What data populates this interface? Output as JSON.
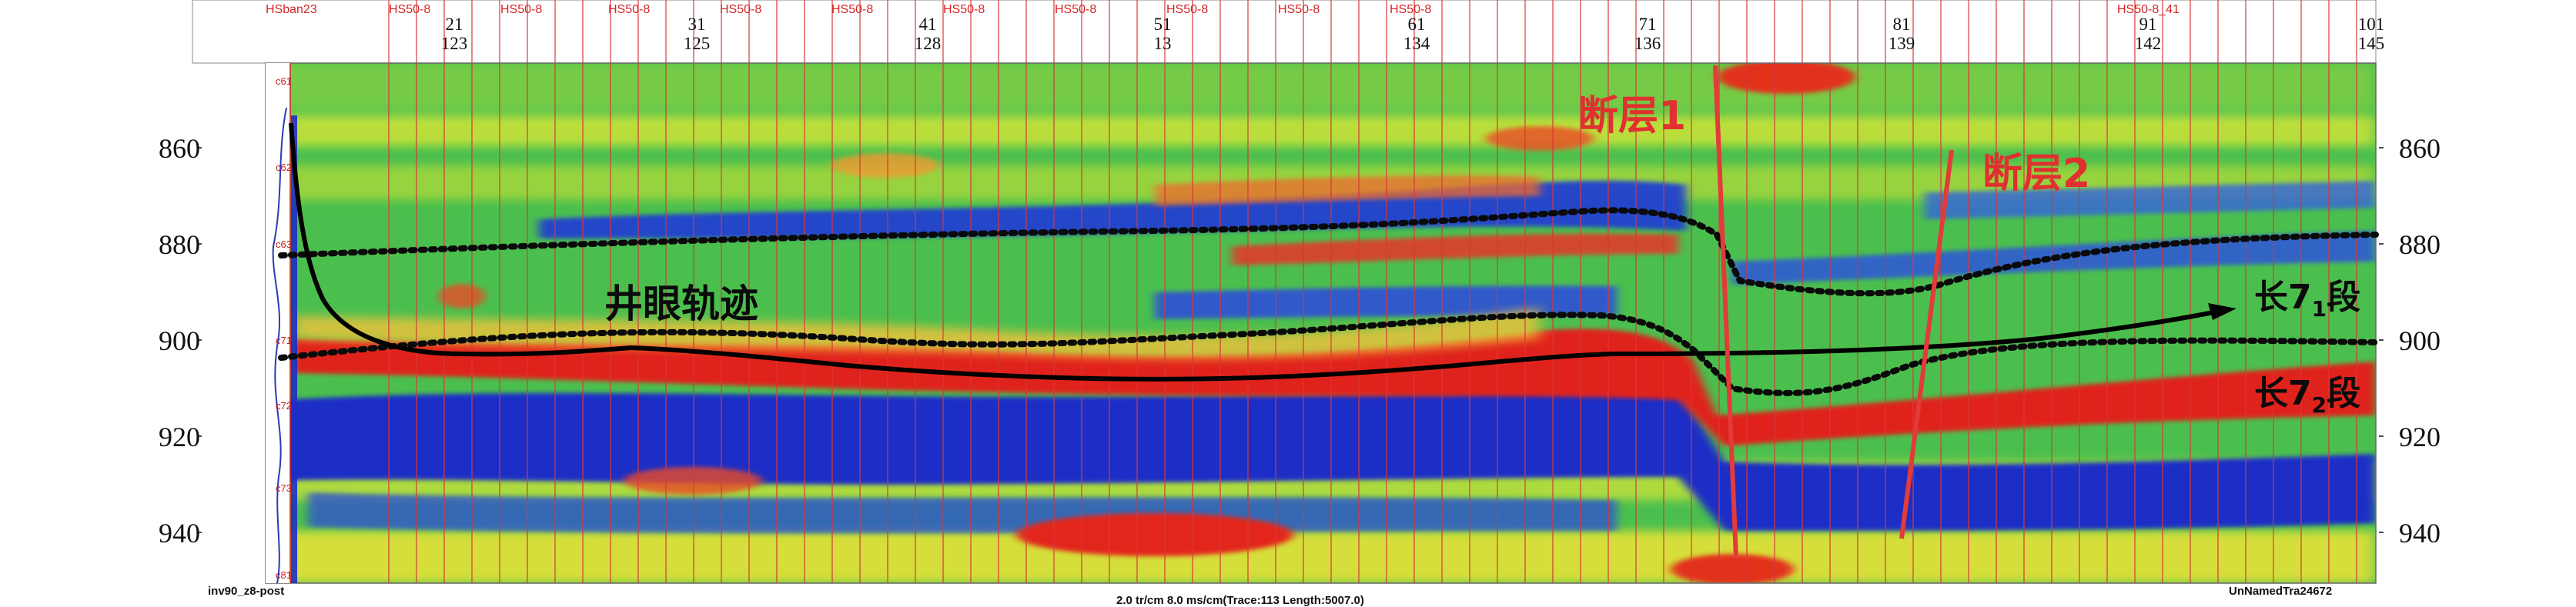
{
  "header": {
    "well_tags": [
      "HSban23",
      "HS50-8",
      "HS50-8",
      "HS50-8",
      "HS50-8",
      "HS50-8",
      "HS50-8",
      "HS50-8",
      "HS50-8",
      "HS50-8",
      "HS50-8",
      "HS50-8_41"
    ],
    "trace_numbers": [
      {
        "top": "21",
        "bottom": "123"
      },
      {
        "top": "31",
        "bottom": "125"
      },
      {
        "top": "41",
        "bottom": "128"
      },
      {
        "top": "51",
        "bottom": "13"
      },
      {
        "top": "61",
        "bottom": "134"
      },
      {
        "top": "71",
        "bottom": "136"
      },
      {
        "top": "81",
        "bottom": "139"
      },
      {
        "top": "91",
        "bottom": "142"
      },
      {
        "top": "101",
        "bottom": "145"
      }
    ]
  },
  "depth_axis": {
    "labels": [
      "860",
      "880",
      "900",
      "920",
      "940"
    ]
  },
  "well_markers": [
    "c61",
    "c62",
    "c63",
    "c71",
    "c72",
    "c73",
    "c81"
  ],
  "annotations": {
    "wellbore": "井眼轨迹",
    "fault1": "断层1",
    "fault2": "断层2",
    "chang71_prefix": "长7",
    "chang71_sub": "1",
    "chang71_suffix": "段",
    "chang72_prefix": "长7",
    "chang72_sub": "2",
    "chang72_suffix": "段"
  },
  "footer": {
    "left": "inv90_z8-post",
    "center": "2.0 tr/cm 8.0 ms/cm(Trace:113 Length:5007.0)",
    "right": "UnNamedTra24672"
  },
  "colors": {
    "low_impedance": "#1e2fc8",
    "mid_value": "#2fb54a",
    "high_value": "#e32020",
    "wellbore_line": "#000000",
    "fault_line": "#e33a3a",
    "annotation_red": "#e03030"
  }
}
